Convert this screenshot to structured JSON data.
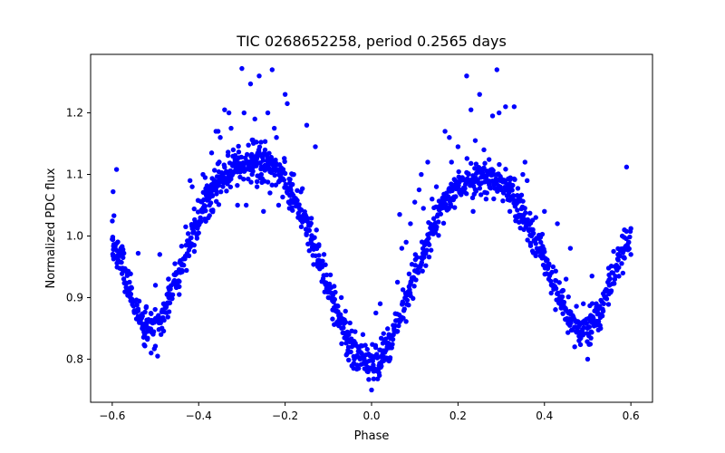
{
  "chart_data": {
    "type": "scatter",
    "title": "TIC 0268652258, period 0.2565 days",
    "xlabel": "Phase",
    "ylabel": "Normalized PDC flux",
    "xlim": [
      -0.65,
      0.65
    ],
    "ylim": [
      0.73,
      1.295
    ],
    "xticks": [
      -0.6,
      -0.4,
      -0.2,
      0.0,
      0.2,
      0.4,
      0.6
    ],
    "xtick_labels": [
      "−0.6",
      "−0.4",
      "−0.2",
      "0.0",
      "0.2",
      "0.4",
      "0.6"
    ],
    "yticks": [
      0.8,
      0.9,
      1.0,
      1.1,
      1.2
    ],
    "ytick_labels": [
      "0.8",
      "0.9",
      "1.0",
      "1.1",
      "1.2"
    ],
    "grid": false,
    "legend": "none",
    "marker_color": "#0000ff",
    "model": {
      "description_points": [
        [
          -0.6,
          0.995
        ],
        [
          -0.58,
          0.955
        ],
        [
          -0.56,
          0.91
        ],
        [
          -0.54,
          0.87
        ],
        [
          -0.52,
          0.85
        ],
        [
          -0.5,
          0.852
        ],
        [
          -0.48,
          0.878
        ],
        [
          -0.46,
          0.915
        ],
        [
          -0.44,
          0.955
        ],
        [
          -0.42,
          0.995
        ],
        [
          -0.4,
          1.03
        ],
        [
          -0.38,
          1.058
        ],
        [
          -0.36,
          1.08
        ],
        [
          -0.34,
          1.097
        ],
        [
          -0.32,
          1.11
        ],
        [
          -0.3,
          1.118
        ],
        [
          -0.28,
          1.122
        ],
        [
          -0.26,
          1.122
        ],
        [
          -0.24,
          1.118
        ],
        [
          -0.22,
          1.108
        ],
        [
          -0.2,
          1.09
        ],
        [
          -0.18,
          1.065
        ],
        [
          -0.16,
          1.035
        ],
        [
          -0.14,
          1.0
        ],
        [
          -0.12,
          0.96
        ],
        [
          -0.1,
          0.918
        ],
        [
          -0.08,
          0.878
        ],
        [
          -0.06,
          0.843
        ],
        [
          -0.04,
          0.815
        ],
        [
          -0.02,
          0.798
        ],
        [
          0.0,
          0.792
        ],
        [
          0.02,
          0.8
        ],
        [
          0.04,
          0.822
        ],
        [
          0.06,
          0.855
        ],
        [
          0.08,
          0.895
        ],
        [
          0.1,
          0.935
        ],
        [
          0.12,
          0.975
        ],
        [
          0.14,
          1.01
        ],
        [
          0.16,
          1.04
        ],
        [
          0.18,
          1.063
        ],
        [
          0.2,
          1.08
        ],
        [
          0.22,
          1.091
        ],
        [
          0.24,
          1.097
        ],
        [
          0.26,
          1.098
        ],
        [
          0.28,
          1.094
        ],
        [
          0.3,
          1.085
        ],
        [
          0.32,
          1.07
        ],
        [
          0.34,
          1.05
        ],
        [
          0.36,
          1.025
        ],
        [
          0.38,
          0.995
        ],
        [
          0.4,
          0.962
        ],
        [
          0.42,
          0.925
        ],
        [
          0.44,
          0.89
        ],
        [
          0.46,
          0.862
        ],
        [
          0.48,
          0.848
        ],
        [
          0.5,
          0.85
        ],
        [
          0.52,
          0.868
        ],
        [
          0.54,
          0.898
        ],
        [
          0.56,
          0.935
        ],
        [
          0.58,
          0.97
        ],
        [
          0.6,
          1.0
        ]
      ]
    },
    "outliers": [
      [
        -0.598,
        1.072
      ],
      [
        -0.596,
        1.033
      ],
      [
        -0.59,
        1.108
      ],
      [
        -0.58,
        0.98
      ],
      [
        -0.575,
        0.965
      ],
      [
        -0.565,
        0.94
      ],
      [
        -0.56,
        0.925
      ],
      [
        -0.545,
        0.878
      ],
      [
        -0.54,
        0.972
      ],
      [
        -0.53,
        0.87
      ],
      [
        -0.525,
        0.84
      ],
      [
        -0.51,
        0.81
      ],
      [
        -0.5,
        0.92
      ],
      [
        -0.495,
        0.805
      ],
      [
        -0.49,
        0.97
      ],
      [
        -0.48,
        0.89
      ],
      [
        -0.47,
        0.93
      ],
      [
        -0.455,
        0.955
      ],
      [
        -0.445,
        0.905
      ],
      [
        -0.43,
        1.015
      ],
      [
        -0.42,
        1.09
      ],
      [
        -0.415,
        1.08
      ],
      [
        -0.41,
        0.975
      ],
      [
        -0.4,
        1.005
      ],
      [
        -0.39,
        1.1
      ],
      [
        -0.385,
        1.095
      ],
      [
        -0.375,
        1.05
      ],
      [
        -0.37,
        1.135
      ],
      [
        -0.36,
        1.17
      ],
      [
        -0.355,
        1.17
      ],
      [
        -0.35,
        1.16
      ],
      [
        -0.34,
        1.205
      ],
      [
        -0.33,
        1.2
      ],
      [
        -0.325,
        1.175
      ],
      [
        -0.32,
        1.14
      ],
      [
        -0.31,
        1.05
      ],
      [
        -0.3,
        1.272
      ],
      [
        -0.295,
        1.2
      ],
      [
        -0.29,
        1.05
      ],
      [
        -0.28,
        1.247
      ],
      [
        -0.27,
        1.19
      ],
      [
        -0.265,
        1.08
      ],
      [
        -0.26,
        1.26
      ],
      [
        -0.255,
        1.1
      ],
      [
        -0.25,
        1.04
      ],
      [
        -0.24,
        1.2
      ],
      [
        -0.235,
        1.07
      ],
      [
        -0.23,
        1.27
      ],
      [
        -0.225,
        1.175
      ],
      [
        -0.22,
        1.16
      ],
      [
        -0.215,
        1.05
      ],
      [
        -0.21,
        1.1
      ],
      [
        -0.2,
        1.23
      ],
      [
        -0.195,
        1.215
      ],
      [
        -0.19,
        1.045
      ],
      [
        -0.18,
        1.1
      ],
      [
        -0.17,
        1.03
      ],
      [
        -0.16,
        1.077
      ],
      [
        -0.15,
        1.18
      ],
      [
        -0.14,
        0.99
      ],
      [
        -0.13,
        1.145
      ],
      [
        -0.12,
        0.96
      ],
      [
        -0.11,
        0.97
      ],
      [
        -0.1,
        0.9
      ],
      [
        -0.09,
        0.88
      ],
      [
        -0.08,
        0.86
      ],
      [
        -0.07,
        0.9
      ],
      [
        -0.06,
        0.86
      ],
      [
        -0.05,
        0.83
      ],
      [
        -0.04,
        0.8
      ],
      [
        -0.03,
        0.785
      ],
      [
        -0.02,
        0.84
      ],
      [
        -0.01,
        0.78
      ],
      [
        0.0,
        0.75
      ],
      [
        0.005,
        0.768
      ],
      [
        0.01,
        0.875
      ],
      [
        0.02,
        0.89
      ],
      [
        0.03,
        0.83
      ],
      [
        0.04,
        0.84
      ],
      [
        0.05,
        0.855
      ],
      [
        0.06,
        0.925
      ],
      [
        0.065,
        1.035
      ],
      [
        0.07,
        0.98
      ],
      [
        0.08,
        0.99
      ],
      [
        0.09,
        1.02
      ],
      [
        0.1,
        1.055
      ],
      [
        0.11,
        1.075
      ],
      [
        0.115,
        1.1
      ],
      [
        0.12,
        1.045
      ],
      [
        0.13,
        1.12
      ],
      [
        0.14,
        1.06
      ],
      [
        0.15,
        1.08
      ],
      [
        0.16,
        1.05
      ],
      [
        0.17,
        1.17
      ],
      [
        0.18,
        1.16
      ],
      [
        0.185,
        1.12
      ],
      [
        0.19,
        1.08
      ],
      [
        0.2,
        1.145
      ],
      [
        0.21,
        1.095
      ],
      [
        0.22,
        1.26
      ],
      [
        0.23,
        1.205
      ],
      [
        0.235,
        1.04
      ],
      [
        0.24,
        1.155
      ],
      [
        0.25,
        1.23
      ],
      [
        0.26,
        1.14
      ],
      [
        0.265,
        1.06
      ],
      [
        0.27,
        1.1
      ],
      [
        0.28,
        1.195
      ],
      [
        0.29,
        1.27
      ],
      [
        0.295,
        1.2
      ],
      [
        0.3,
        1.075
      ],
      [
        0.31,
        1.21
      ],
      [
        0.32,
        1.04
      ],
      [
        0.33,
        1.21
      ],
      [
        0.34,
        1.06
      ],
      [
        0.35,
        1.1
      ],
      [
        0.355,
        1.12
      ],
      [
        0.36,
        1.09
      ],
      [
        0.37,
        1.0
      ],
      [
        0.38,
        1.03
      ],
      [
        0.39,
        0.98
      ],
      [
        0.4,
        1.04
      ],
      [
        0.41,
        0.93
      ],
      [
        0.42,
        0.95
      ],
      [
        0.43,
        1.02
      ],
      [
        0.44,
        0.91
      ],
      [
        0.45,
        0.93
      ],
      [
        0.46,
        0.98
      ],
      [
        0.47,
        0.82
      ],
      [
        0.48,
        0.83
      ],
      [
        0.49,
        0.89
      ],
      [
        0.5,
        0.8
      ],
      [
        0.51,
        0.935
      ],
      [
        0.52,
        0.89
      ],
      [
        0.53,
        0.85
      ],
      [
        0.54,
        0.9
      ],
      [
        0.55,
        0.92
      ],
      [
        0.56,
        0.975
      ],
      [
        0.57,
        0.97
      ],
      [
        0.58,
        1.0
      ],
      [
        0.585,
        1.01
      ],
      [
        0.59,
        1.112
      ],
      [
        0.595,
        0.99
      ],
      [
        0.6,
        0.97
      ]
    ]
  }
}
